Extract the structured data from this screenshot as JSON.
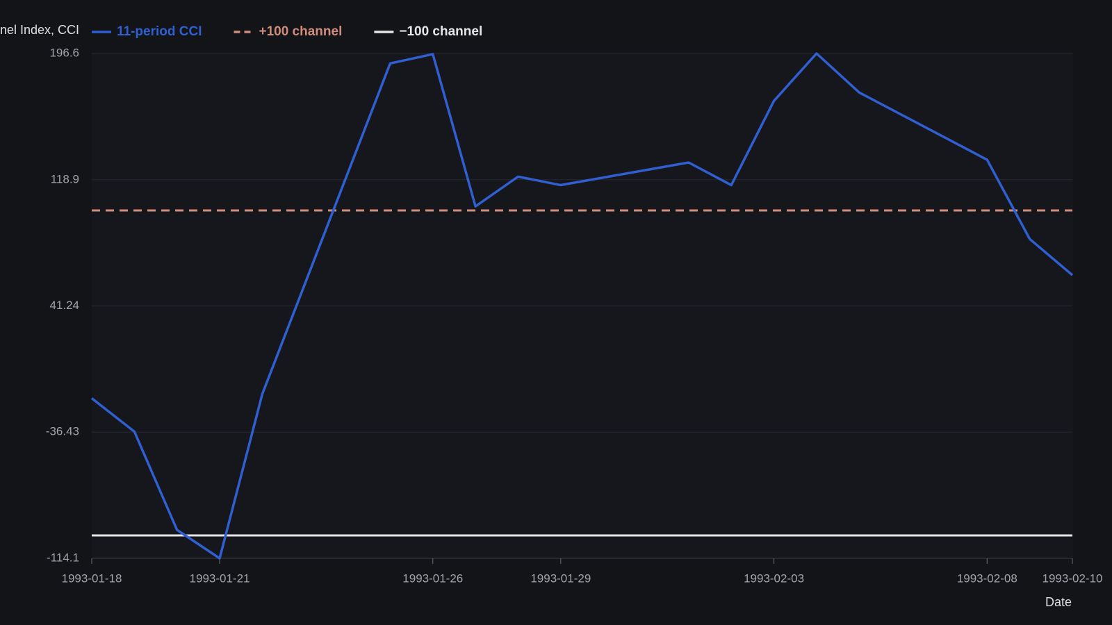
{
  "chart_data": {
    "type": "line",
    "y_label": "Commodity Channel Index, CCI",
    "x_label": "Date",
    "x": [
      "1993-01-18",
      "1993-01-19",
      "1993-01-20",
      "1993-01-21",
      "1993-01-22",
      "1993-01-25",
      "1993-01-26",
      "1993-01-27",
      "1993-01-28",
      "1993-01-29",
      "1993-02-01",
      "1993-02-02",
      "1993-02-03",
      "1993-02-04",
      "1993-02-05",
      "1993-02-08",
      "1993-02-09",
      "1993-02-10"
    ],
    "series": [
      {
        "name": "11-period CCI",
        "color": "#2f5fd0",
        "dash": false,
        "values": [
          -15.6,
          -36.1,
          -96.6,
          -114.1,
          -13.0,
          190.5,
          196.2,
          102.5,
          120.8,
          115.6,
          129.5,
          115.6,
          167.4,
          196.6,
          172.6,
          131.2,
          82.4,
          60.2
        ]
      },
      {
        "name": "+100 channel",
        "color": "#d08c7c",
        "dash": true,
        "values": [
          100,
          100,
          100,
          100,
          100,
          100,
          100,
          100,
          100,
          100,
          100,
          100,
          100,
          100,
          100,
          100,
          100,
          100
        ]
      },
      {
        "name": "−100 channel",
        "color": "#e6e6e6",
        "dash": false,
        "values": [
          -100,
          -100,
          -100,
          -100,
          -100,
          -100,
          -100,
          -100,
          -100,
          -100,
          -100,
          -100,
          -100,
          -100,
          -100,
          -100,
          -100,
          -100
        ]
      }
    ],
    "xlim": [
      "1993-01-18",
      "1993-02-10"
    ],
    "xticks": [
      "1993-01-18",
      "1993-01-21",
      "1993-01-26",
      "1993-01-29",
      "1993-02-03",
      "1993-02-08",
      "1993-02-10"
    ],
    "ylim": [
      -114.1,
      196.6
    ],
    "yticks": [
      196.6,
      118.9,
      41.24,
      -36.43,
      -114.1
    ],
    "grid": true
  }
}
